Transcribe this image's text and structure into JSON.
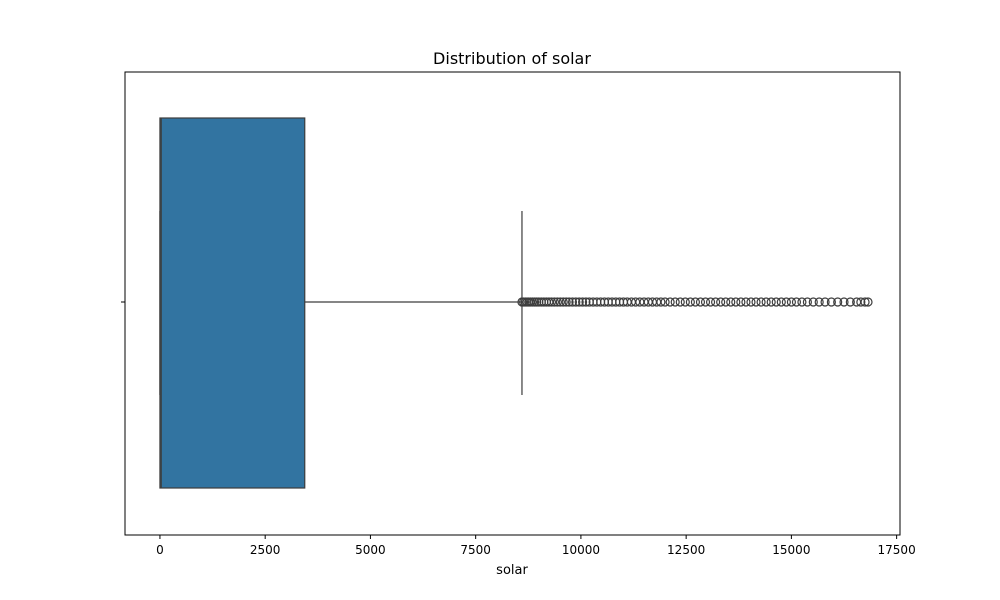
{
  "chart_data": {
    "type": "box",
    "title": "Distribution of solar",
    "xlabel": "solar",
    "ylabel": "",
    "xlim": [
      -830,
      17580
    ],
    "xticks": [
      0,
      2500,
      5000,
      7500,
      10000,
      12500,
      15000,
      17500
    ],
    "xtick_labels": [
      "0",
      "2500",
      "5000",
      "7500",
      "10000",
      "12500",
      "15000",
      "17500"
    ],
    "grid": false,
    "orientation": "horizontal",
    "box": {
      "whisker_low": 0,
      "q1": 0,
      "median": 30,
      "q3": 3440,
      "whisker_high": 8600
    },
    "outliers": [
      8600,
      8640,
      8680,
      8720,
      8760,
      8800,
      8850,
      8900,
      8950,
      9000,
      9060,
      9120,
      9180,
      9240,
      9300,
      9370,
      9440,
      9510,
      9580,
      9650,
      9720,
      9800,
      9880,
      9960,
      10040,
      10120,
      10200,
      10290,
      10380,
      10470,
      10560,
      10650,
      10740,
      10830,
      10920,
      11010,
      11100,
      11200,
      11300,
      11400,
      11500,
      11600,
      11700,
      11800,
      11900,
      12000,
      12120,
      12240,
      12360,
      12480,
      12600,
      12720,
      12840,
      12960,
      13080,
      13200,
      13320,
      13440,
      13560,
      13680,
      13800,
      13920,
      14040,
      14160,
      14280,
      14400,
      14520,
      14640,
      14760,
      14880,
      15000,
      15120,
      15250,
      15380,
      15520,
      15660,
      15800,
      15950,
      16100,
      16250,
      16400,
      16550,
      16650,
      16750,
      16820
    ],
    "colors": {
      "box_fill": "#3274a1",
      "edge": "#3d3d3d"
    }
  }
}
